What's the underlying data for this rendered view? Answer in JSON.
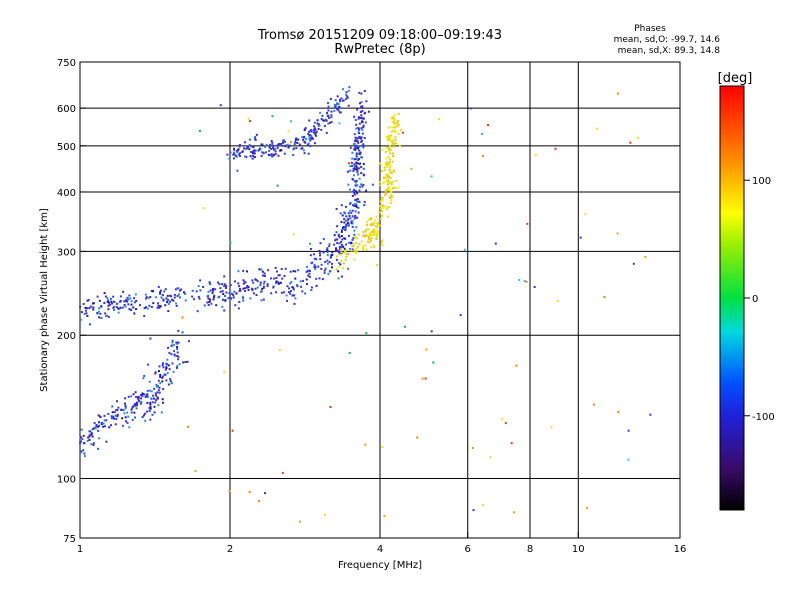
{
  "header": {
    "title": "Tromsø 20151209 09:18:00–09:19:43",
    "subtitle": "RwPretec (8p)"
  },
  "phases_box": {
    "heading": "Phases",
    "o_line": "mean, sd,O: -99.7, 14.6",
    "x_line": "mean, sd,X: 89.3, 14.8"
  },
  "chart_data": {
    "type": "scatter",
    "title": "Tromsø 20151209 09:18:00–09:19:43",
    "subtitle": "RwPretec (8p)",
    "xlabel": "Frequency [MHz]",
    "ylabel": "Stationary phase Virtual Height [km]",
    "x_scale": "log",
    "y_scale": "log",
    "xlim": [
      1,
      16
    ],
    "ylim": [
      75,
      750
    ],
    "x_ticks": [
      1,
      2,
      4,
      6,
      8,
      10,
      16
    ],
    "x_tick_labels": [
      "1",
      "2",
      "4",
      "6",
      "8",
      "10",
      "16"
    ],
    "x_grid_lines": [
      2,
      4,
      6,
      8,
      10
    ],
    "y_ticks": [
      75,
      100,
      200,
      300,
      400,
      500,
      600,
      750
    ],
    "y_tick_labels": [
      "75",
      "100",
      "200",
      "300",
      "400",
      "500",
      "600",
      "750"
    ],
    "y_grid_lines": [
      100,
      200,
      300,
      400,
      500,
      600
    ],
    "grid": true,
    "colorbar": {
      "label": "[deg]",
      "range": [
        -180,
        180
      ],
      "ticks": [
        100,
        0,
        -100
      ],
      "tick_labels": [
        "100",
        "0",
        "-100"
      ]
    },
    "series": [
      {
        "mode": "O",
        "phase_mean": -99.7,
        "phase_sd": 14.6,
        "color": "#3a2fd8",
        "traces": [
          {
            "from": [
              1.0,
              118
            ],
            "to": [
              1.35,
              150
            ],
            "sd": 8
          },
          {
            "from": [
              1.35,
              140
            ],
            "to": [
              1.6,
              190
            ],
            "sd": 10
          },
          {
            "from": [
              1.0,
              225
            ],
            "to": [
              1.3,
              235
            ],
            "sd": 6
          },
          {
            "from": [
              1.35,
              232
            ],
            "to": [
              1.6,
              245
            ],
            "sd": 6
          },
          {
            "from": [
              1.7,
              240
            ],
            "to": [
              2.8,
              262
            ],
            "sd": 8
          },
          {
            "from": [
              2.8,
              262
            ],
            "to": [
              3.4,
              310
            ],
            "sd": 10
          },
          {
            "from": [
              3.35,
              300
            ],
            "to": [
              3.65,
              430
            ],
            "sd": 10
          },
          {
            "from": [
              3.55,
              420
            ],
            "to": [
              3.7,
              620
            ],
            "sd": 6
          },
          {
            "from": [
              2.0,
              480
            ],
            "to": [
              2.8,
              505
            ],
            "sd": 5
          },
          {
            "from": [
              2.8,
              505
            ],
            "to": [
              3.45,
              640
            ],
            "sd": 6
          }
        ]
      },
      {
        "mode": "X",
        "phase_mean": 89.3,
        "phase_sd": 14.8,
        "color": "#e8e010",
        "traces": [
          {
            "from": [
              3.35,
              290
            ],
            "to": [
              4.0,
              330
            ],
            "sd": 6
          },
          {
            "from": [
              3.8,
              320
            ],
            "to": [
              4.25,
              420
            ],
            "sd": 6
          },
          {
            "from": [
              4.1,
              420
            ],
            "to": [
              4.3,
              580
            ],
            "sd": 6
          }
        ]
      }
    ]
  }
}
